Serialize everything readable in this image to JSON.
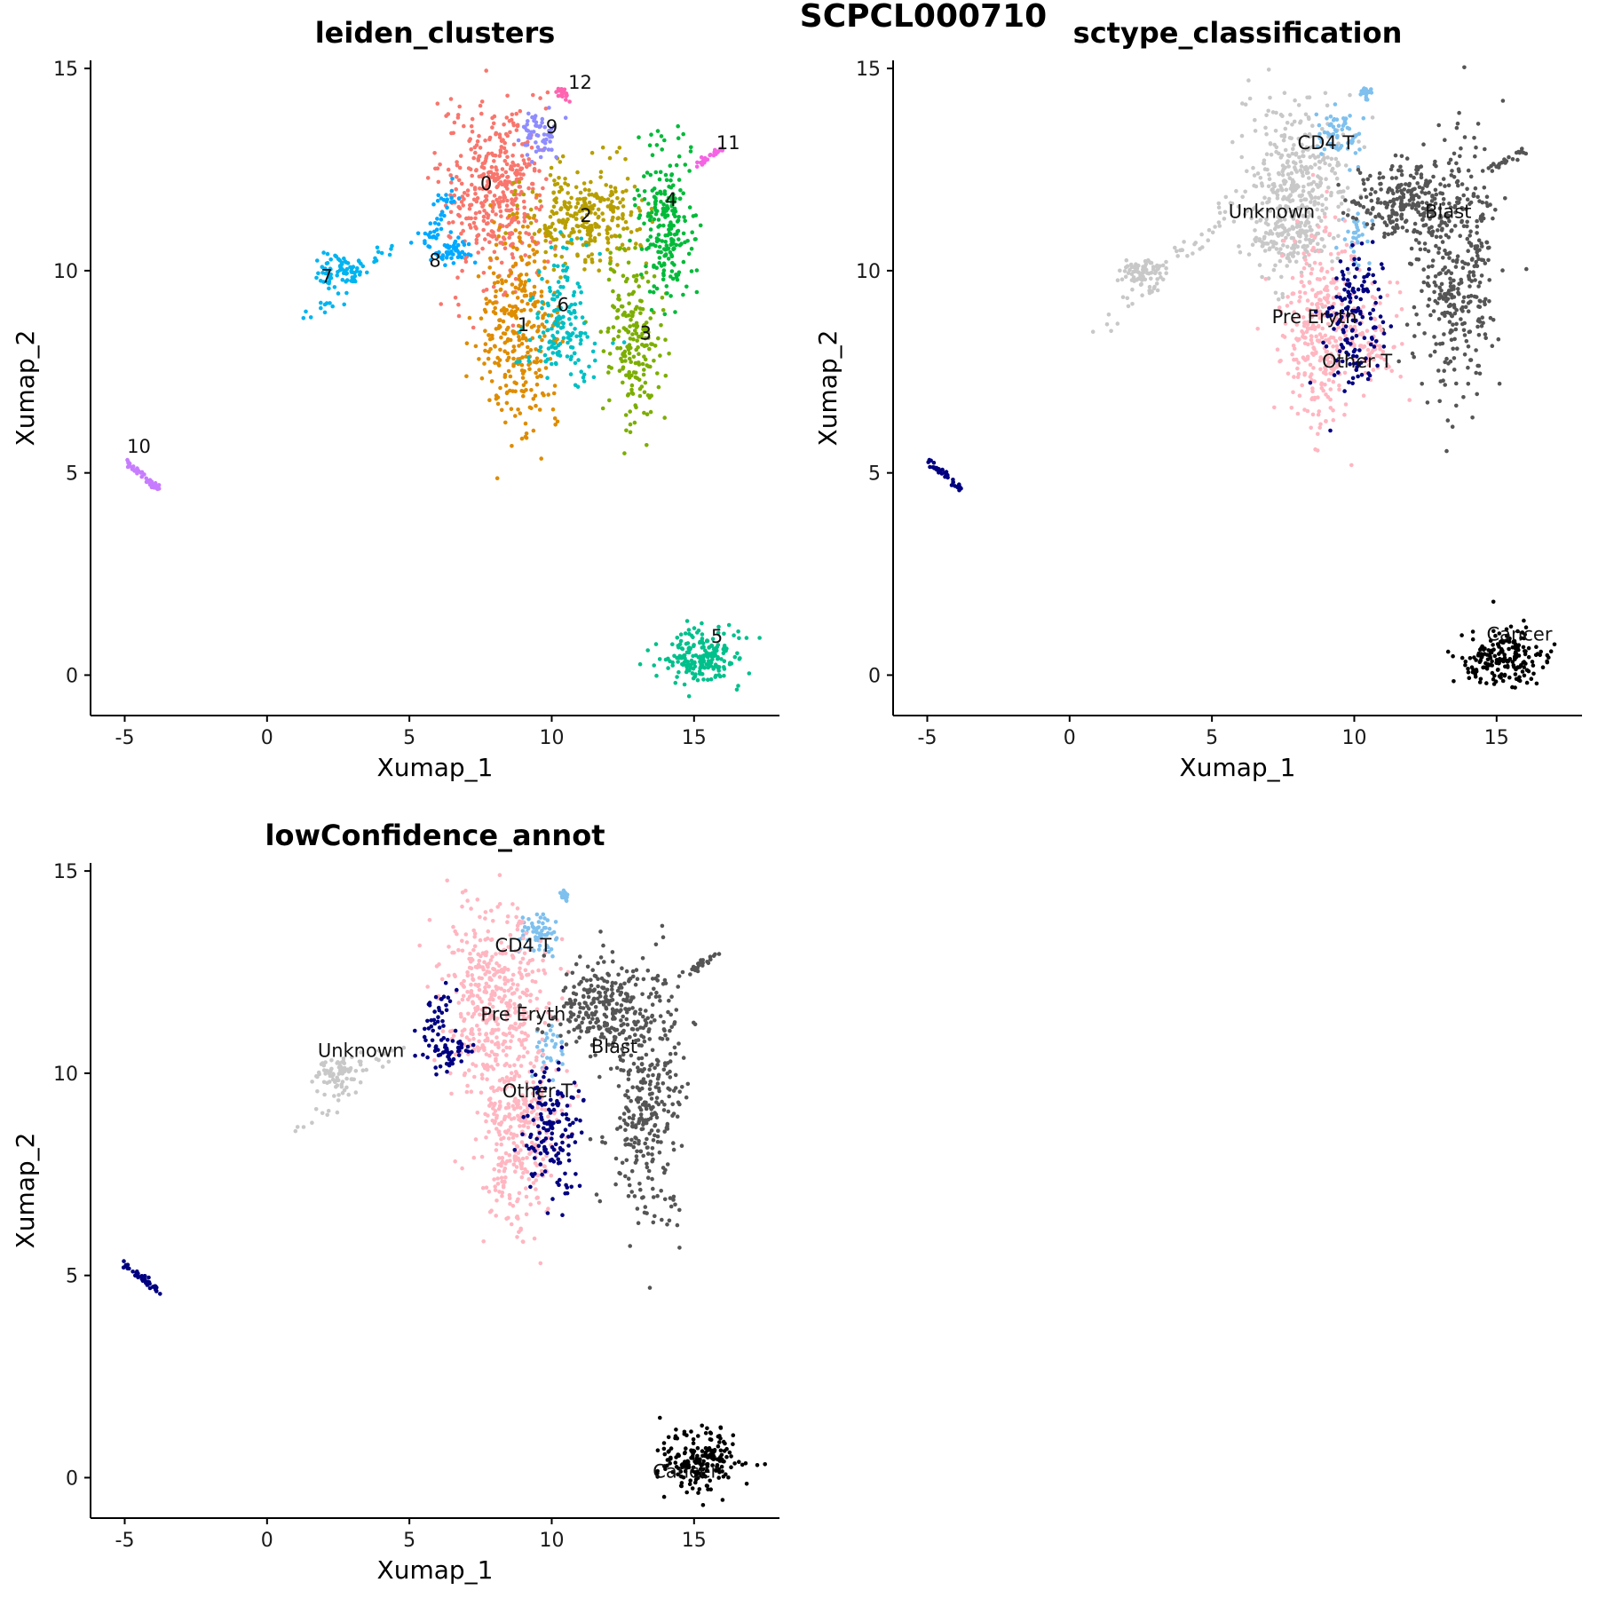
{
  "suptitle": "SCPCL000710",
  "chart_data": [
    {
      "type": "scatter",
      "title": "leiden_clusters",
      "xlabel": "Xumap_1",
      "ylabel": "Xumap_2",
      "xlim": [
        -6.2,
        18
      ],
      "ylim": [
        -1,
        15.2
      ],
      "xticks": [
        "-5",
        "0",
        "5",
        "10",
        "15"
      ],
      "yticks": [
        "0",
        "5",
        "10",
        "15"
      ],
      "grid": false,
      "legend": "none",
      "groups": [
        {
          "label": "0",
          "color": "#F8766D",
          "label_pos": [
            7.7,
            12.0
          ],
          "regions": [
            {
              "c": [
                8.0,
                12.0
              ],
              "s": [
                0.9,
                1.1
              ],
              "n": 420
            }
          ]
        },
        {
          "label": "1",
          "color": "#DE8C00",
          "label_pos": [
            9.0,
            8.5
          ],
          "regions": [
            {
              "c": [
                8.8,
                8.5
              ],
              "s": [
                0.7,
                1.2
              ],
              "n": 320
            }
          ]
        },
        {
          "label": "2",
          "color": "#B79F00",
          "label_pos": [
            11.2,
            11.2
          ],
          "regions": [
            {
              "c": [
                11.2,
                11.4
              ],
              "s": [
                1.0,
                0.6
              ],
              "n": 280
            }
          ]
        },
        {
          "label": "3",
          "color": "#7CAE00",
          "label_pos": [
            13.3,
            8.3
          ],
          "regions": [
            {
              "c": [
                12.9,
                8.3
              ],
              "s": [
                0.5,
                1.0
              ],
              "n": 200
            }
          ]
        },
        {
          "label": "4",
          "color": "#00BA38",
          "label_pos": [
            14.2,
            11.6
          ],
          "regions": [
            {
              "c": [
                14.0,
                11.2
              ],
              "s": [
                0.5,
                0.9
              ],
              "n": 220
            }
          ]
        },
        {
          "label": "5",
          "color": "#00C08B",
          "label_pos": [
            15.8,
            0.8
          ],
          "regions": [
            {
              "c": [
                15.2,
                0.4
              ],
              "s": [
                0.7,
                0.35
              ],
              "n": 200
            }
          ]
        },
        {
          "label": "6",
          "color": "#00BFC4",
          "label_pos": [
            10.4,
            9.0
          ],
          "regions": [
            {
              "c": [
                10.3,
                8.8
              ],
              "s": [
                0.6,
                0.8
              ],
              "n": 160
            }
          ]
        },
        {
          "label": "7",
          "color": "#00B4F0",
          "label_pos": [
            2.1,
            9.7
          ],
          "regions": [
            {
              "c": [
                2.5,
                10.0
              ],
              "s": [
                0.4,
                0.2
              ],
              "n": 70
            },
            {
              "line": [
                [
                  1.2,
                  8.6
                ],
                [
                  4.5,
                  10.7
                ]
              ],
              "w": 0.15,
              "n": 30
            }
          ]
        },
        {
          "label": "8",
          "color": "#00A9FF",
          "label_pos": [
            5.9,
            10.1
          ],
          "regions": [
            {
              "c": [
                6.5,
                10.5
              ],
              "s": [
                0.4,
                0.2
              ],
              "n": 50
            },
            {
              "line": [
                [
                  5.5,
                  10.6
                ],
                [
                  6.5,
                  12.1
                ]
              ],
              "w": 0.2,
              "n": 40
            }
          ]
        },
        {
          "label": "9",
          "color": "#8F8CFF",
          "label_pos": [
            10.0,
            13.4
          ],
          "regions": [
            {
              "c": [
                9.5,
                13.4
              ],
              "s": [
                0.35,
                0.3
              ],
              "n": 60
            }
          ]
        },
        {
          "label": "10",
          "color": "#C77CFF",
          "label_pos": [
            -4.5,
            5.5
          ],
          "regions": [
            {
              "line": [
                [
                  -5.0,
                  5.3
                ],
                [
                  -3.8,
                  4.6
                ]
              ],
              "w": 0.05,
              "n": 40
            }
          ]
        },
        {
          "label": "11",
          "color": "#F564E3",
          "label_pos": [
            16.2,
            13.0
          ],
          "regions": [
            {
              "line": [
                [
                  15.0,
                  12.6
                ],
                [
                  16.0,
                  13.0
                ]
              ],
              "w": 0.05,
              "n": 25
            }
          ]
        },
        {
          "label": "12",
          "color": "#FF64B0",
          "label_pos": [
            11.0,
            14.5
          ],
          "regions": [
            {
              "c": [
                10.4,
                14.4
              ],
              "s": [
                0.1,
                0.08
              ],
              "n": 18
            }
          ]
        }
      ]
    },
    {
      "type": "scatter",
      "title": "sctype_classification",
      "xlabel": "Xumap_1",
      "ylabel": "Xumap_2",
      "xlim": [
        -6.2,
        18
      ],
      "ylim": [
        -1,
        15.2
      ],
      "xticks": [
        "-5",
        "0",
        "5",
        "10",
        "15"
      ],
      "yticks": [
        "0",
        "5",
        "10",
        "15"
      ],
      "grid": false,
      "legend": "none",
      "groups": [
        {
          "label": "Unknown",
          "color": "#C8C8C8",
          "label_pos": [
            7.1,
            11.3
          ],
          "regions": [
            {
              "c": [
                8.0,
                12.0
              ],
              "s": [
                0.9,
                1.1
              ],
              "n": 420
            },
            {
              "c": [
                7.5,
                10.7
              ],
              "s": [
                0.5,
                0.3
              ],
              "n": 60
            },
            {
              "c": [
                2.5,
                10.0
              ],
              "s": [
                0.4,
                0.2
              ],
              "n": 70
            },
            {
              "line": [
                [
                  1.2,
                  8.6
                ],
                [
                  6.5,
                  12.1
                ]
              ],
              "w": 0.18,
              "n": 50
            }
          ]
        },
        {
          "label": "CD4 T",
          "color": "#7EC0EE",
          "label_pos": [
            9.0,
            13.0
          ],
          "regions": [
            {
              "c": [
                9.5,
                13.4
              ],
              "s": [
                0.35,
                0.3
              ],
              "n": 60
            },
            {
              "c": [
                10.4,
                14.4
              ],
              "s": [
                0.1,
                0.08
              ],
              "n": 18
            },
            {
              "c": [
                10.0,
                10.7
              ],
              "s": [
                0.3,
                0.4
              ],
              "n": 30
            }
          ]
        },
        {
          "label": "Blast",
          "color": "#555555",
          "label_pos": [
            13.3,
            11.3
          ],
          "regions": [
            {
              "c": [
                11.7,
                11.7
              ],
              "s": [
                0.9,
                0.5
              ],
              "n": 220
            },
            {
              "c": [
                13.6,
                10.0
              ],
              "s": [
                0.7,
                1.6
              ],
              "n": 380
            },
            {
              "line": [
                [
                  14.8,
                  12.5
                ],
                [
                  16.0,
                  13.0
                ]
              ],
              "w": 0.06,
              "n": 25
            }
          ]
        },
        {
          "label": "Pre Eryth",
          "color": "#FFB6C1",
          "label_pos": [
            8.6,
            8.7
          ],
          "regions": [
            {
              "c": [
                8.8,
                8.5
              ],
              "s": [
                0.7,
                1.2
              ],
              "n": 320
            },
            {
              "c": [
                10.5,
                8.3
              ],
              "s": [
                0.7,
                0.7
              ],
              "n": 80
            }
          ]
        },
        {
          "label": "Other T",
          "color": "#000080",
          "label_pos": [
            10.1,
            7.6
          ],
          "regions": [
            {
              "c": [
                10.0,
                8.6
              ],
              "s": [
                0.5,
                0.9
              ],
              "n": 150
            },
            {
              "line": [
                [
                  -5.0,
                  5.3
                ],
                [
                  -3.8,
                  4.6
                ]
              ],
              "w": 0.05,
              "n": 40
            }
          ]
        },
        {
          "label": "Cancer",
          "color": "#000000",
          "label_pos": [
            15.8,
            0.85
          ],
          "regions": [
            {
              "c": [
                15.2,
                0.4
              ],
              "s": [
                0.7,
                0.35
              ],
              "n": 200
            }
          ]
        }
      ]
    },
    {
      "type": "scatter",
      "title": "lowConfidence_annot",
      "xlabel": "Xumap_1",
      "ylabel": "Xumap_2",
      "xlim": [
        -6.2,
        18
      ],
      "ylim": [
        -1,
        15.2
      ],
      "xticks": [
        "-5",
        "0",
        "5",
        "10",
        "15"
      ],
      "yticks": [
        "0",
        "5",
        "10",
        "15"
      ],
      "grid": false,
      "legend": "none",
      "groups": [
        {
          "label": "Unknown",
          "color": "#C8C8C8",
          "label_pos": [
            3.3,
            10.4
          ],
          "regions": [
            {
              "c": [
                2.5,
                10.0
              ],
              "s": [
                0.4,
                0.2
              ],
              "n": 70
            },
            {
              "line": [
                [
                  1.2,
                  8.6
                ],
                [
                  4.5,
                  10.7
                ]
              ],
              "w": 0.15,
              "n": 30
            }
          ]
        },
        {
          "label": "CD4 T",
          "color": "#7EC0EE",
          "label_pos": [
            9.0,
            13.0
          ],
          "regions": [
            {
              "c": [
                9.5,
                13.4
              ],
              "s": [
                0.35,
                0.3
              ],
              "n": 60
            },
            {
              "c": [
                10.4,
                14.4
              ],
              "s": [
                0.1,
                0.08
              ],
              "n": 18
            },
            {
              "c": [
                10.0,
                10.7
              ],
              "s": [
                0.3,
                0.4
              ],
              "n": 30
            }
          ]
        },
        {
          "label": "Pre Eryth",
          "color": "#FFB6C1",
          "label_pos": [
            9.0,
            11.3
          ],
          "regions": [
            {
              "c": [
                8.0,
                12.0
              ],
              "s": [
                0.9,
                1.1
              ],
              "n": 420
            },
            {
              "c": [
                8.8,
                8.5
              ],
              "s": [
                0.7,
                1.2
              ],
              "n": 320
            }
          ]
        },
        {
          "label": "Blast",
          "color": "#555555",
          "label_pos": [
            12.2,
            10.5
          ],
          "regions": [
            {
              "c": [
                11.7,
                11.7
              ],
              "s": [
                0.9,
                0.5
              ],
              "n": 220
            },
            {
              "c": [
                13.3,
                9.5
              ],
              "s": [
                0.7,
                1.7
              ],
              "n": 360
            },
            {
              "line": [
                [
                  14.8,
                  12.5
                ],
                [
                  16.0,
                  13.0
                ]
              ],
              "w": 0.06,
              "n": 25
            }
          ]
        },
        {
          "label": "Other T",
          "color": "#000080",
          "label_pos": [
            9.5,
            9.4
          ],
          "regions": [
            {
              "c": [
                10.0,
                8.6
              ],
              "s": [
                0.5,
                0.9
              ],
              "n": 150
            },
            {
              "c": [
                6.5,
                10.5
              ],
              "s": [
                0.4,
                0.2
              ],
              "n": 50
            },
            {
              "line": [
                [
                  5.5,
                  10.6
                ],
                [
                  6.5,
                  12.1
                ]
              ],
              "w": 0.2,
              "n": 40
            },
            {
              "line": [
                [
                  -5.0,
                  5.3
                ],
                [
                  -3.8,
                  4.6
                ]
              ],
              "w": 0.05,
              "n": 40
            }
          ]
        },
        {
          "label": "Cancer",
          "color": "#000000",
          "label_pos": [
            14.7,
            0.0
          ],
          "regions": [
            {
              "c": [
                15.2,
                0.4
              ],
              "s": [
                0.7,
                0.35
              ],
              "n": 200
            }
          ]
        }
      ]
    }
  ]
}
